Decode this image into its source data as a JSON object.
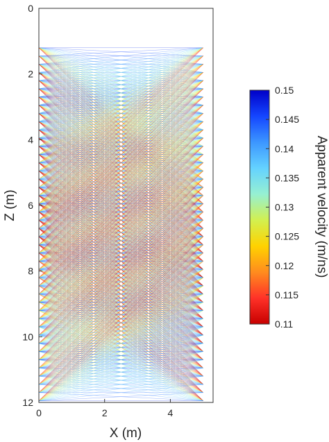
{
  "chart_data": {
    "type": "ray-coverage",
    "xlabel": "X (m)",
    "ylabel": "Z (m)",
    "xlim": [
      0,
      5.3
    ],
    "ylim": [
      0,
      12
    ],
    "y_reversed": true,
    "x_ticks": [
      "0",
      "2",
      "4"
    ],
    "y_ticks": [
      "0",
      "2",
      "4",
      "6",
      "8",
      "10",
      "12"
    ],
    "transmitters": {
      "x": 0,
      "z_min": 1.2,
      "z_max": 12,
      "step": 0.25
    },
    "receivers": {
      "x": 5,
      "z_min": 1.2,
      "z_max": 12,
      "step": 0.25
    },
    "colorbar": {
      "label": "Apparent velocity (m/ns)",
      "min": 0.11,
      "max": 0.15,
      "ticks": [
        "0.15",
        "0.145",
        "0.14",
        "0.135",
        "0.13",
        "0.125",
        "0.12",
        "0.115",
        "0.11"
      ],
      "colormap": [
        "#0000c8",
        "#1446ff",
        "#3c96ff",
        "#64d2ff",
        "#96f0d2",
        "#d2f050",
        "#ffd200",
        "#ff8c1e",
        "#ff3228",
        "#c80000"
      ]
    }
  }
}
